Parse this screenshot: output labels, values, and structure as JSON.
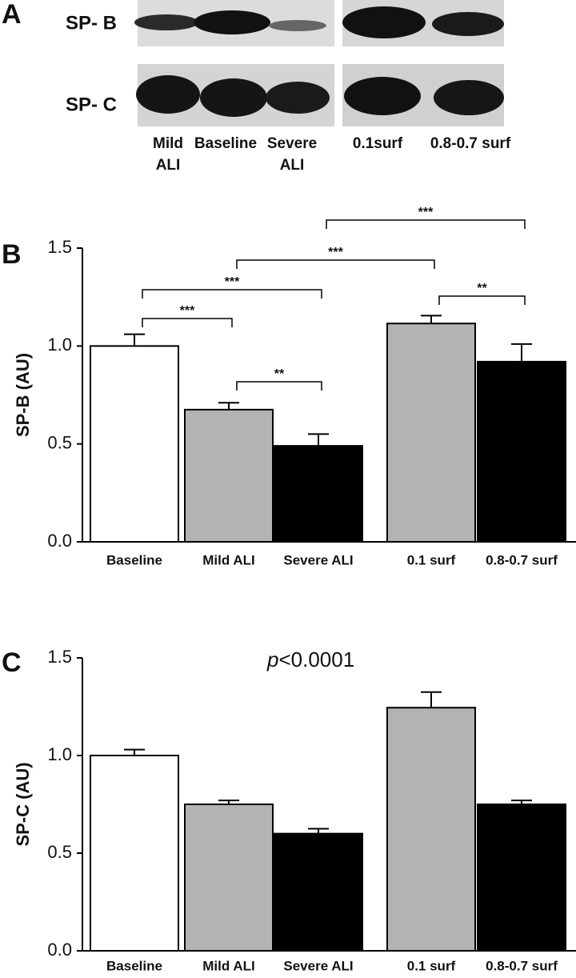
{
  "panel_a": {
    "letter": "A",
    "rows": [
      "SP- B",
      "SP- C"
    ],
    "lanes": [
      [
        "Mild",
        "ALI"
      ],
      [
        "Baseline"
      ],
      [
        "Severe",
        "ALI"
      ],
      [
        "0.1surf"
      ],
      [
        "0.8-0.7 surf"
      ]
    ]
  },
  "chart_data": [
    {
      "type": "bar",
      "panel": "B",
      "ylabel": "SP-B (AU)",
      "categories": [
        "Baseline",
        "Mild ALI",
        "Severe ALI",
        "0.1 surf",
        "0.8-0.7 surf"
      ],
      "values": [
        1.0,
        0.675,
        0.49,
        1.115,
        0.92
      ],
      "errors": [
        0.06,
        0.035,
        0.06,
        0.04,
        0.09
      ],
      "colors": [
        "#ffffff",
        "#b3b3b3",
        "#000000",
        "#b3b3b3",
        "#000000"
      ],
      "ylim": [
        0,
        1.5
      ],
      "yticks": [
        {
          "value": 0,
          "label": "0.0"
        },
        0.5,
        {
          "value": 1,
          "label": "1.0"
        },
        1.5
      ],
      "brackets": [
        {
          "from": 0,
          "to": 1,
          "label": "***"
        },
        {
          "from": 1,
          "to": 2,
          "label": "**"
        },
        {
          "from": 0,
          "to": 2,
          "label": "***"
        },
        {
          "from": 1,
          "to": 3,
          "label": "***"
        },
        {
          "from": 2,
          "to": 4,
          "label": "***"
        },
        {
          "from": 3,
          "to": 4,
          "label": "**"
        }
      ]
    },
    {
      "type": "bar",
      "panel": "C",
      "ylabel": "SP-C (AU)",
      "categories": [
        "Baseline",
        "Mild ALI",
        "Severe ALI",
        "0.1 surf",
        "0.8-0.7 surf"
      ],
      "values": [
        1.0,
        0.75,
        0.6,
        1.245,
        0.75
      ],
      "errors": [
        0.03,
        0.02,
        0.025,
        0.08,
        0.02
      ],
      "colors": [
        "#ffffff",
        "#b3b3b3",
        "#000000",
        "#b3b3b3",
        "#000000"
      ],
      "ylim": [
        0,
        1.5
      ],
      "yticks": [
        {
          "value": 0,
          "label": "0.0"
        },
        0.5,
        {
          "value": 1,
          "label": "1.0"
        },
        1.5
      ],
      "annotation": [
        "p",
        "<0.0001"
      ]
    }
  ]
}
